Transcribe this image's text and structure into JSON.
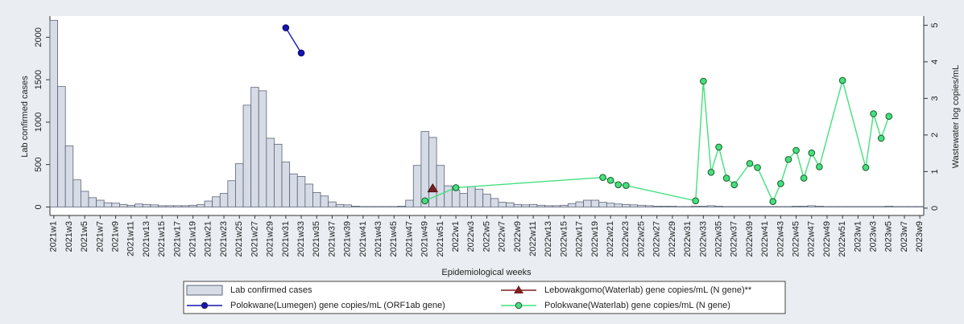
{
  "chart_data": {
    "type": "combo",
    "y_label": "Lab confirmed cases",
    "y2_label": "Wastewater log copies/mL",
    "x_label": "Epidemiological weeks",
    "ylim": [
      -100,
      2250
    ],
    "yticks": [
      0,
      500,
      1000,
      1500,
      2000
    ],
    "y2lim": [
      -0.2,
      5.25
    ],
    "y2ticks": [
      0,
      1,
      2,
      3,
      4,
      5
    ],
    "grid": false,
    "connect_gaps": true,
    "categories": [
      "2021w1",
      null,
      "2021w3",
      null,
      "2021w5",
      null,
      "2021w7",
      null,
      "2021w9",
      null,
      "2021w11",
      null,
      "2021w13",
      null,
      "2021w15",
      null,
      "2021w17",
      null,
      "2021w19",
      null,
      "2021w21",
      null,
      "2021w23",
      null,
      "2021w25",
      null,
      "2021w27",
      null,
      "2021w29",
      null,
      "2021w31",
      null,
      "2021w33",
      null,
      "2021w35",
      null,
      "2021w37",
      null,
      "2021w39",
      null,
      "2021w41",
      null,
      "2021w43",
      null,
      "2021w45",
      null,
      "2021w47",
      null,
      "2021w49",
      null,
      "2021w51",
      null,
      "2022w1",
      null,
      "2022w3",
      null,
      "2022w5",
      null,
      "2022w7",
      null,
      "2022w9",
      null,
      "2022w11",
      null,
      "2022w13",
      null,
      "2022w15",
      null,
      "2022w17",
      null,
      "2022w19",
      null,
      "2022w21",
      null,
      "2022w23",
      null,
      "2022w25",
      null,
      "2022w27",
      null,
      "2022w29",
      null,
      "2022w31",
      null,
      "2022w33",
      null,
      "2022w35",
      null,
      "2022w37",
      null,
      "2022w39",
      null,
      "2022w41",
      null,
      "2022w43",
      null,
      "2022w45",
      null,
      "2022w47",
      null,
      "2022w49",
      null,
      "2022w51",
      null,
      "2023w1",
      null,
      "2023w3",
      null,
      "2023w5",
      null,
      "2023w7",
      null,
      "2023w9"
    ],
    "series": [
      {
        "name": "Lab confirmed cases",
        "type": "bar",
        "color": "#d6dbe6",
        "values": [
          2200,
          1420,
          720,
          320,
          185,
          110,
          80,
          50,
          45,
          30,
          20,
          35,
          30,
          25,
          15,
          15,
          15,
          15,
          20,
          30,
          70,
          120,
          160,
          310,
          510,
          1200,
          1410,
          1370,
          810,
          740,
          530,
          390,
          360,
          270,
          170,
          130,
          60,
          30,
          25,
          10,
          5,
          5,
          5,
          5,
          5,
          10,
          80,
          490,
          890,
          820,
          490,
          250,
          200,
          160,
          240,
          210,
          150,
          100,
          55,
          50,
          30,
          25,
          30,
          20,
          15,
          15,
          20,
          40,
          60,
          80,
          80,
          55,
          45,
          35,
          30,
          25,
          20,
          15,
          10,
          10,
          10,
          5,
          5,
          10,
          10,
          15,
          10,
          5,
          5,
          5,
          5,
          5,
          5,
          5,
          5,
          5,
          10,
          10,
          15,
          10,
          5,
          5,
          5,
          5,
          5,
          5,
          5,
          5,
          10,
          5,
          5,
          5,
          5
        ]
      },
      {
        "name": "Polokwane(Lumegen) gene copies/mL (ORF1ab gene)",
        "type": "line",
        "marker": "circle",
        "axis": "y2",
        "color": "#1414b4",
        "values": [
          null,
          null,
          null,
          null,
          null,
          null,
          null,
          null,
          null,
          null,
          null,
          null,
          null,
          null,
          null,
          null,
          null,
          null,
          null,
          null,
          null,
          null,
          null,
          null,
          null,
          null,
          null,
          null,
          null,
          null,
          4.93,
          null,
          4.24,
          null,
          null,
          null,
          null,
          null,
          null,
          null,
          null,
          null,
          null,
          null,
          null,
          null,
          null,
          null,
          null,
          null,
          null,
          null,
          null,
          null,
          null,
          null,
          null,
          null,
          null,
          null,
          null,
          null,
          null,
          null,
          null,
          null,
          null,
          null,
          null,
          null,
          null,
          null,
          null,
          null,
          null,
          null,
          null,
          null,
          null,
          null,
          null,
          null,
          null,
          null,
          null,
          null,
          null,
          null,
          null,
          null,
          null,
          null,
          null,
          null,
          null,
          null,
          null,
          null,
          null,
          null,
          null,
          null,
          null,
          null,
          null,
          null,
          null,
          null,
          null,
          null,
          null,
          null,
          null
        ]
      },
      {
        "name": "Lebowakgomo(Waterlab) gene copies/mL (N gene)**",
        "type": "scatter",
        "marker": "triangle",
        "axis": "y2",
        "color": "#7a2020",
        "values": [
          null,
          null,
          null,
          null,
          null,
          null,
          null,
          null,
          null,
          null,
          null,
          null,
          null,
          null,
          null,
          null,
          null,
          null,
          null,
          null,
          null,
          null,
          null,
          null,
          null,
          null,
          null,
          null,
          null,
          null,
          null,
          null,
          null,
          null,
          null,
          null,
          null,
          null,
          null,
          null,
          null,
          null,
          null,
          null,
          null,
          null,
          null,
          null,
          null,
          0.53,
          null,
          null,
          null,
          null,
          null,
          null,
          null,
          null,
          null,
          null,
          null,
          null,
          null,
          null,
          null,
          null,
          null,
          null,
          null,
          null,
          null,
          null,
          null,
          null,
          null,
          null,
          null,
          null,
          null,
          null,
          null,
          null,
          null,
          null,
          null,
          null,
          null,
          null,
          null,
          null,
          null,
          null,
          null,
          null,
          null,
          null,
          null,
          null,
          null,
          null,
          null,
          null,
          null,
          null,
          null,
          null,
          null,
          null,
          null,
          null,
          null,
          null,
          null
        ]
      },
      {
        "name": "Polokwane(Waterlab) gene copies/mL (N gene)",
        "type": "line",
        "marker": "circle",
        "axis": "y2",
        "color": "#44e07e",
        "values": [
          null,
          null,
          null,
          null,
          null,
          null,
          null,
          null,
          null,
          null,
          null,
          null,
          null,
          null,
          null,
          null,
          null,
          null,
          null,
          null,
          null,
          null,
          null,
          null,
          null,
          null,
          null,
          null,
          null,
          null,
          null,
          null,
          null,
          null,
          null,
          null,
          null,
          null,
          null,
          null,
          null,
          null,
          null,
          null,
          null,
          null,
          null,
          null,
          0.2,
          null,
          null,
          null,
          0.56,
          null,
          null,
          null,
          null,
          null,
          null,
          null,
          null,
          null,
          null,
          null,
          null,
          null,
          null,
          null,
          null,
          null,
          null,
          0.84,
          0.76,
          0.64,
          0.62,
          null,
          null,
          null,
          null,
          null,
          null,
          null,
          null,
          0.2,
          3.47,
          0.98,
          1.67,
          0.82,
          0.64,
          null,
          1.22,
          1.11,
          null,
          0.18,
          0.67,
          1.33,
          1.58,
          0.82,
          1.51,
          1.13,
          null,
          null,
          3.49,
          null,
          null,
          1.11,
          2.58,
          1.91,
          2.51,
          null,
          null,
          null,
          null
        ]
      }
    ]
  }
}
